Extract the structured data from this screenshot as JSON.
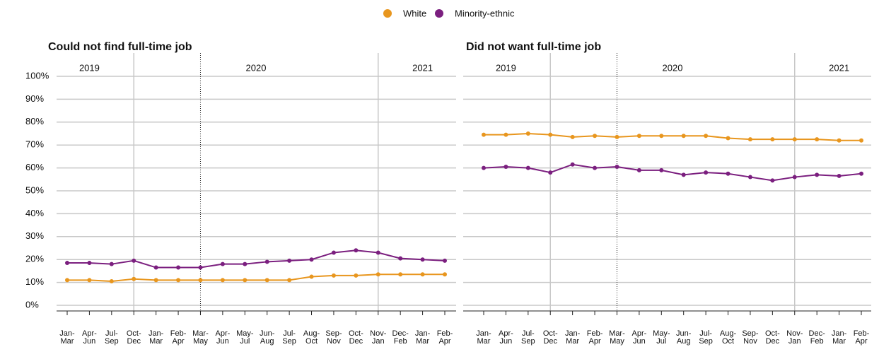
{
  "chart_data": [
    {
      "type": "line",
      "title": "Could not find full-time job",
      "years": [
        "2019",
        "2020",
        "2021"
      ],
      "categories": [
        [
          "Jan-",
          "Mar"
        ],
        [
          "Apr-",
          "Jun"
        ],
        [
          "Jul-",
          "Sep"
        ],
        [
          "Oct-",
          "Dec"
        ],
        [
          "Jan-",
          "Mar"
        ],
        [
          "Feb-",
          "Apr"
        ],
        [
          "Mar-",
          "May"
        ],
        [
          "Apr-",
          "Jun"
        ],
        [
          "May-",
          "Jul"
        ],
        [
          "Jun-",
          "Aug"
        ],
        [
          "Jul-",
          "Sep"
        ],
        [
          "Aug-",
          "Oct"
        ],
        [
          "Sep-",
          "Nov"
        ],
        [
          "Oct-",
          "Dec"
        ],
        [
          "Nov-",
          "Jan"
        ],
        [
          "Dec-",
          "Feb"
        ],
        [
          "Jan-",
          "Mar"
        ],
        [
          "Feb-",
          "Apr"
        ]
      ],
      "series": [
        {
          "name": "White",
          "color": "#e8961e",
          "values": [
            11,
            11,
            10.5,
            11.5,
            11,
            11,
            11,
            11,
            11,
            11,
            11,
            12.5,
            13,
            13,
            13.5,
            13.5,
            13.5,
            13.5
          ]
        },
        {
          "name": "Minority-ethnic",
          "color": "#7b1f7f",
          "values": [
            18.5,
            18.5,
            18,
            19.5,
            16.5,
            16.5,
            16.5,
            18,
            18,
            19,
            19.5,
            20,
            23,
            24,
            23,
            20.5,
            20,
            19.5
          ]
        }
      ],
      "ylim": [
        0,
        100
      ],
      "yticks": [
        {
          "value": 0,
          "label": "0%"
        },
        {
          "value": 10,
          "label": "10%"
        },
        {
          "value": 20,
          "label": "20%"
        },
        {
          "value": 30,
          "label": "30%"
        },
        {
          "value": 40,
          "label": "40%"
        },
        {
          "value": 50,
          "label": "50%"
        },
        {
          "value": 60,
          "label": "60%"
        },
        {
          "value": 70,
          "label": "70%"
        },
        {
          "value": 80,
          "label": "80%"
        },
        {
          "value": 90,
          "label": "90%"
        },
        {
          "value": 100,
          "label": "100%"
        }
      ],
      "ytick_labels": true,
      "grid": true
    },
    {
      "type": "line",
      "title": "Did not want full-time job",
      "years": [
        "2019",
        "2020",
        "2021"
      ],
      "categories": [
        [
          "Jan-",
          "Mar"
        ],
        [
          "Apr-",
          "Jun"
        ],
        [
          "Jul-",
          "Sep"
        ],
        [
          "Oct-",
          "Dec"
        ],
        [
          "Jan-",
          "Mar"
        ],
        [
          "Feb-",
          "Apr"
        ],
        [
          "Mar-",
          "May"
        ],
        [
          "Apr-",
          "Jun"
        ],
        [
          "May-",
          "Jul"
        ],
        [
          "Jun-",
          "Aug"
        ],
        [
          "Jul-",
          "Sep"
        ],
        [
          "Aug-",
          "Oct"
        ],
        [
          "Sep-",
          "Nov"
        ],
        [
          "Oct-",
          "Dec"
        ],
        [
          "Nov-",
          "Jan"
        ],
        [
          "Dec-",
          "Feb"
        ],
        [
          "Jan-",
          "Mar"
        ],
        [
          "Feb-",
          "Apr"
        ]
      ],
      "series": [
        {
          "name": "White",
          "color": "#e8961e",
          "values": [
            74.5,
            74.5,
            75,
            74.5,
            73.5,
            74,
            73.5,
            74,
            74,
            74,
            74,
            73,
            72.5,
            72.5,
            72.5,
            72.5,
            72,
            72
          ]
        },
        {
          "name": "Minority-ethnic",
          "color": "#7b1f7f",
          "values": [
            60,
            60.5,
            60,
            58,
            61.5,
            60,
            60.5,
            59,
            59,
            57,
            58,
            57.5,
            56,
            54.5,
            56,
            57,
            56.5,
            57.5
          ]
        }
      ],
      "ylim": [
        0,
        100
      ],
      "yticks": [
        {
          "value": 0,
          "label": "0%"
        },
        {
          "value": 10,
          "label": "10%"
        },
        {
          "value": 20,
          "label": "20%"
        },
        {
          "value": 30,
          "label": "30%"
        },
        {
          "value": 40,
          "label": "40%"
        },
        {
          "value": 50,
          "label": "50%"
        },
        {
          "value": 60,
          "label": "60%"
        },
        {
          "value": 70,
          "label": "70%"
        },
        {
          "value": 80,
          "label": "80%"
        },
        {
          "value": 90,
          "label": "90%"
        },
        {
          "value": 100,
          "label": "100%"
        }
      ],
      "ytick_labels": false,
      "grid": true
    }
  ]
}
